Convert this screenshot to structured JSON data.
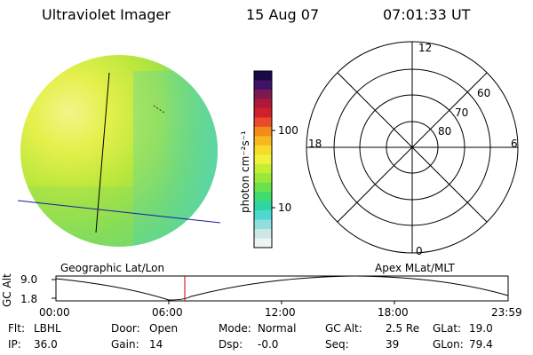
{
  "header": {
    "title": "Ultraviolet Imager",
    "date": "15 Aug 07",
    "time": "07:01:33 UT"
  },
  "colorbar": {
    "unit_label": "photon cm⁻²s⁻¹",
    "ticks": [
      "100",
      "10"
    ],
    "colors": [
      "#eef4f4",
      "#cde6e6",
      "#92dede",
      "#4fd8d0",
      "#2ed6a6",
      "#42dc6e",
      "#6ae24c",
      "#9ae83a",
      "#c6ee30",
      "#eef23a",
      "#f6dc28",
      "#f6b81c",
      "#f48a1a",
      "#e84a2a",
      "#d0202a",
      "#b0183a",
      "#7a1a50",
      "#3e1466",
      "#180a48"
    ]
  },
  "polar": {
    "labels": {
      "top": "12",
      "left": "18",
      "right": "6",
      "bottom": "0"
    },
    "rings": [
      "60",
      "70",
      "80"
    ]
  },
  "panels": {
    "left_label": "Geographic Lat/Lon",
    "right_label": "Apex MLat/MLT"
  },
  "altitude_plot": {
    "ylabel": "GC Alt",
    "yticks": [
      "9.0",
      "1.8"
    ],
    "xticks": [
      "00:00",
      "06:00",
      "12:00",
      "18:00",
      "23:59"
    ],
    "current_time_marker": "07:01:33",
    "marker_color": "#c00000"
  },
  "status": [
    [
      {
        "k": "Flt:",
        "v": "LBHL"
      },
      {
        "k": "Door:",
        "v": "Open"
      },
      {
        "k": "Mode:",
        "v": "Normal"
      },
      {
        "k": "GC Alt:",
        "v": "2.5 Re"
      },
      {
        "k": "GLat:",
        "v": "19.0"
      }
    ],
    [
      {
        "k": "IP:",
        "v": "36.0"
      },
      {
        "k": "Gain:",
        "v": "14"
      },
      {
        "k": "Dsp:",
        "v": "-0.0"
      },
      {
        "k": "Seq:",
        "v": "39"
      },
      {
        "k": "GLon:",
        "v": "79.4"
      }
    ]
  ]
}
